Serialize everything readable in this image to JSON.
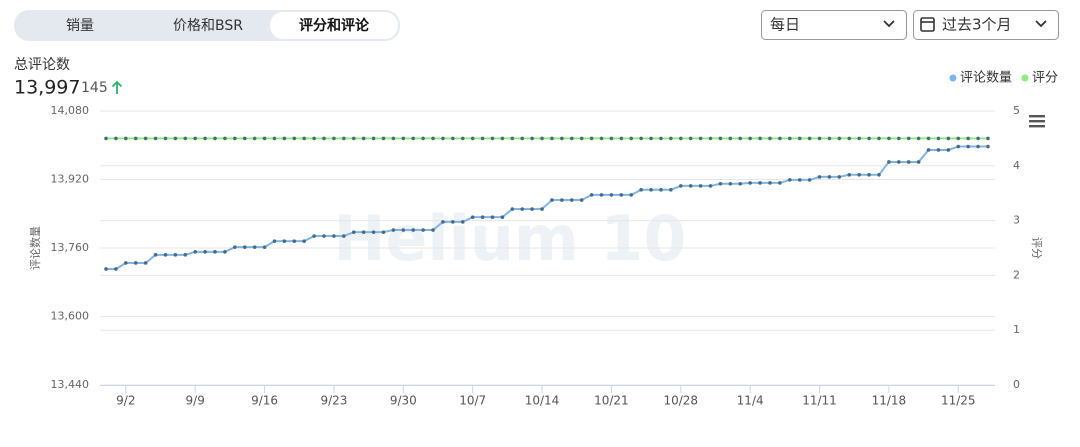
{
  "tabs": [
    "销量",
    "价格和BSR",
    "评分和评论"
  ],
  "active_tab": 2,
  "filters": {
    "frequency": "每日",
    "range": "过去3个月"
  },
  "summary": {
    "label": "总评论数",
    "total": "13,997",
    "change": "145"
  },
  "chart_data": {
    "type": "line",
    "watermark": "Helium 10",
    "y_label": "评论数量",
    "y2_label": "评分",
    "legend": "top-right",
    "grid": true,
    "categories": [
      null,
      null,
      "9/2",
      null,
      null,
      null,
      null,
      null,
      null,
      "9/9",
      null,
      null,
      null,
      null,
      null,
      null,
      "9/16",
      null,
      null,
      null,
      null,
      null,
      null,
      "9/23",
      null,
      null,
      null,
      null,
      null,
      null,
      "9/30",
      null,
      null,
      null,
      null,
      null,
      null,
      "10/7",
      null,
      null,
      null,
      null,
      null,
      null,
      "10/14",
      null,
      null,
      null,
      null,
      null,
      null,
      "10/21",
      null,
      null,
      null,
      null,
      null,
      null,
      "10/28",
      null,
      null,
      null,
      null,
      null,
      null,
      "11/4",
      null,
      null,
      null,
      null,
      null,
      null,
      "11/11",
      null,
      null,
      null,
      null,
      null,
      null,
      "11/18",
      null,
      null,
      null,
      null,
      null,
      null,
      "11/25",
      null,
      null,
      null
    ],
    "series": [
      {
        "name": "评论数量",
        "color": "#7cb5ec",
        "values": [
          13711,
          13711,
          13725,
          13725,
          13725,
          13744,
          13744,
          13744,
          13744,
          13751,
          13751,
          13751,
          13751,
          13762,
          13762,
          13762,
          13762,
          13776,
          13776,
          13776,
          13776,
          13788,
          13788,
          13788,
          13788,
          13797,
          13797,
          13797,
          13797,
          13802,
          13802,
          13802,
          13802,
          13802,
          13821,
          13821,
          13821,
          13832,
          13832,
          13832,
          13832,
          13851,
          13851,
          13851,
          13851,
          13872,
          13872,
          13872,
          13872,
          13884,
          13884,
          13884,
          13884,
          13884,
          13896,
          13896,
          13896,
          13896,
          13905,
          13905,
          13905,
          13905,
          13910,
          13910,
          13910,
          13912,
          13912,
          13912,
          13912,
          13919,
          13919,
          13919,
          13926,
          13926,
          13926,
          13931,
          13931,
          13931,
          13931,
          13961,
          13961,
          13961,
          13961,
          13989,
          13989,
          13989,
          13997,
          13997,
          13997,
          13997
        ]
      },
      {
        "name": "评分",
        "color": "#90ed7d",
        "axis": "y2",
        "values": [
          4.5,
          4.5,
          4.5,
          4.5,
          4.5,
          4.5,
          4.5,
          4.5,
          4.5,
          4.5,
          4.5,
          4.5,
          4.5,
          4.5,
          4.5,
          4.5,
          4.5,
          4.5,
          4.5,
          4.5,
          4.5,
          4.5,
          4.5,
          4.5,
          4.5,
          4.5,
          4.5,
          4.5,
          4.5,
          4.5,
          4.5,
          4.5,
          4.5,
          4.5,
          4.5,
          4.5,
          4.5,
          4.5,
          4.5,
          4.5,
          4.5,
          4.5,
          4.5,
          4.5,
          4.5,
          4.5,
          4.5,
          4.5,
          4.5,
          4.5,
          4.5,
          4.5,
          4.5,
          4.5,
          4.5,
          4.5,
          4.5,
          4.5,
          4.5,
          4.5,
          4.5,
          4.5,
          4.5,
          4.5,
          4.5,
          4.5,
          4.5,
          4.5,
          4.5,
          4.5,
          4.5,
          4.5,
          4.5,
          4.5,
          4.5,
          4.5,
          4.5,
          4.5,
          4.5,
          4.5,
          4.5,
          4.5,
          4.5,
          4.5,
          4.5,
          4.5,
          4.5,
          4.5,
          4.5,
          4.5
        ]
      }
    ],
    "ylim": [
      13440,
      14080
    ],
    "yticks": [
      {
        "value": 13440,
        "label": "13,440"
      },
      {
        "value": 13600,
        "label": "13,600"
      },
      {
        "value": 13760,
        "label": "13,760"
      },
      {
        "value": 13920,
        "label": "13,920"
      },
      {
        "value": 14080,
        "label": "14,080"
      }
    ],
    "y2lim": [
      0,
      5
    ],
    "y2ticks": [
      0,
      1,
      2,
      3,
      4,
      5
    ]
  }
}
